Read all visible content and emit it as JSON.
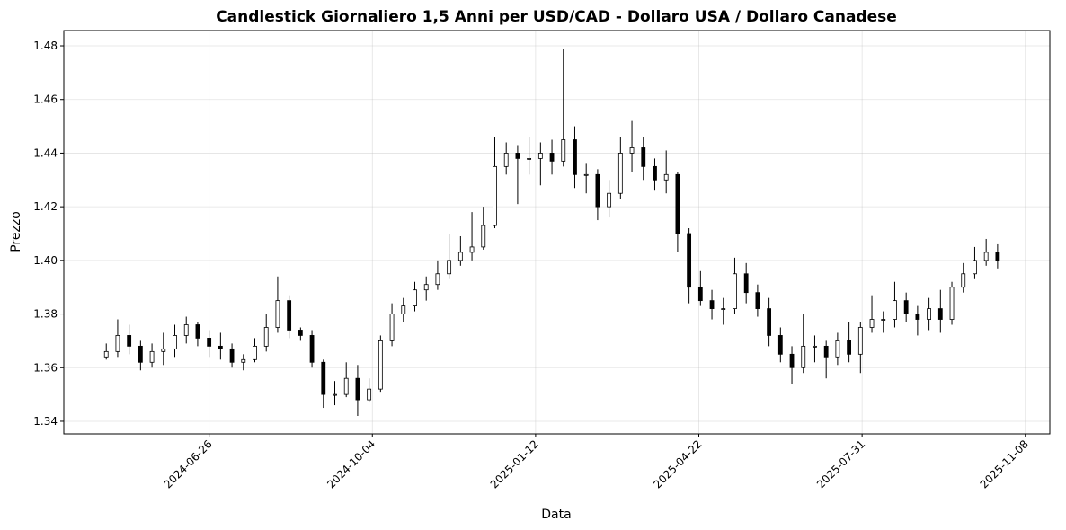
{
  "chart_data": {
    "type": "candlestick",
    "title": "Candlestick Giornaliero 1,5 Anni per USD/CAD - Dollaro USA / Dollaro Canadese",
    "x_label": "Data",
    "y_label": "Prezzo",
    "color": "#000000",
    "grid": true,
    "xlim": [
      "2024-03-29",
      "2025-11-23"
    ],
    "xticks": [
      "2024-06-26",
      "2024-10-04",
      "2025-01-12",
      "2025-04-22",
      "2025-07-31",
      "2025-11-08"
    ],
    "ylim": [
      1.3353,
      1.4857
    ],
    "yticks": [
      {
        "value": 1.34,
        "label": "1.34"
      },
      {
        "value": 1.36,
        "label": "1.36"
      },
      {
        "value": 1.38,
        "label": "1.38"
      },
      {
        "value": 1.4,
        "label": "1.40"
      },
      {
        "value": 1.42,
        "label": "1.42"
      },
      {
        "value": 1.44,
        "label": "1.44"
      },
      {
        "value": 1.46,
        "label": "1.46"
      },
      {
        "value": 1.48,
        "label": "1.48"
      }
    ],
    "x": [
      "2024-04-24",
      "2024-05-01",
      "2024-05-08",
      "2024-05-15",
      "2024-05-22",
      "2024-05-29",
      "2024-06-05",
      "2024-06-12",
      "2024-06-19",
      "2024-06-26",
      "2024-07-03",
      "2024-07-10",
      "2024-07-17",
      "2024-07-24",
      "2024-07-31",
      "2024-08-07",
      "2024-08-14",
      "2024-08-21",
      "2024-08-28",
      "2024-09-04",
      "2024-09-11",
      "2024-09-18",
      "2024-09-25",
      "2024-10-02",
      "2024-10-09",
      "2024-10-16",
      "2024-10-23",
      "2024-10-30",
      "2024-11-06",
      "2024-11-13",
      "2024-11-20",
      "2024-11-27",
      "2024-12-04",
      "2024-12-11",
      "2024-12-18",
      "2024-12-25",
      "2025-01-01",
      "2025-01-08",
      "2025-01-15",
      "2025-01-22",
      "2025-01-29",
      "2025-02-05",
      "2025-02-12",
      "2025-02-19",
      "2025-02-26",
      "2025-03-05",
      "2025-03-12",
      "2025-03-19",
      "2025-03-26",
      "2025-04-02",
      "2025-04-09",
      "2025-04-16",
      "2025-04-23",
      "2025-04-30",
      "2025-05-07",
      "2025-05-14",
      "2025-05-21",
      "2025-05-28",
      "2025-06-04",
      "2025-06-11",
      "2025-06-18",
      "2025-06-25",
      "2025-07-02",
      "2025-07-09",
      "2025-07-16",
      "2025-07-23",
      "2025-07-30",
      "2025-08-06",
      "2025-08-13",
      "2025-08-20",
      "2025-08-27",
      "2025-09-03",
      "2025-09-10",
      "2025-09-17",
      "2025-09-24",
      "2025-10-01",
      "2025-10-08",
      "2025-10-15",
      "2025-10-22"
    ],
    "open": [
      1.364,
      1.366,
      1.372,
      1.368,
      1.362,
      1.366,
      1.367,
      1.372,
      1.376,
      1.371,
      1.368,
      1.367,
      1.362,
      1.363,
      1.368,
      1.375,
      1.385,
      1.374,
      1.372,
      1.362,
      1.35,
      1.35,
      1.356,
      1.348,
      1.352,
      1.37,
      1.38,
      1.383,
      1.389,
      1.391,
      1.395,
      1.4,
      1.403,
      1.405,
      1.413,
      1.435,
      1.44,
      1.438,
      1.438,
      1.44,
      1.437,
      1.445,
      1.432,
      1.432,
      1.42,
      1.425,
      1.44,
      1.442,
      1.435,
      1.43,
      1.432,
      1.41,
      1.39,
      1.385,
      1.382,
      1.382,
      1.395,
      1.388,
      1.382,
      1.372,
      1.365,
      1.36,
      1.368,
      1.368,
      1.364,
      1.37,
      1.365,
      1.375,
      1.378,
      1.378,
      1.385,
      1.38,
      1.378,
      1.382,
      1.378,
      1.39,
      1.395,
      1.4,
      1.403
    ],
    "high": [
      1.369,
      1.378,
      1.376,
      1.37,
      1.369,
      1.373,
      1.376,
      1.379,
      1.377,
      1.374,
      1.373,
      1.369,
      1.365,
      1.371,
      1.38,
      1.394,
      1.387,
      1.375,
      1.374,
      1.363,
      1.355,
      1.362,
      1.361,
      1.356,
      1.372,
      1.384,
      1.386,
      1.392,
      1.394,
      1.4,
      1.41,
      1.409,
      1.418,
      1.42,
      1.446,
      1.444,
      1.443,
      1.446,
      1.444,
      1.445,
      1.479,
      1.45,
      1.436,
      1.434,
      1.43,
      1.446,
      1.452,
      1.446,
      1.438,
      1.441,
      1.433,
      1.412,
      1.396,
      1.389,
      1.386,
      1.401,
      1.399,
      1.391,
      1.386,
      1.375,
      1.368,
      1.38,
      1.372,
      1.37,
      1.373,
      1.377,
      1.377,
      1.387,
      1.381,
      1.392,
      1.388,
      1.383,
      1.386,
      1.389,
      1.392,
      1.399,
      1.405,
      1.408,
      1.406
    ],
    "low": [
      1.363,
      1.364,
      1.365,
      1.359,
      1.36,
      1.361,
      1.364,
      1.369,
      1.368,
      1.364,
      1.363,
      1.36,
      1.359,
      1.362,
      1.366,
      1.373,
      1.371,
      1.37,
      1.36,
      1.345,
      1.346,
      1.349,
      1.342,
      1.347,
      1.351,
      1.368,
      1.377,
      1.381,
      1.385,
      1.389,
      1.393,
      1.398,
      1.4,
      1.404,
      1.412,
      1.432,
      1.421,
      1.432,
      1.428,
      1.432,
      1.435,
      1.427,
      1.425,
      1.415,
      1.416,
      1.423,
      1.433,
      1.43,
      1.426,
      1.425,
      1.403,
      1.384,
      1.383,
      1.378,
      1.376,
      1.38,
      1.384,
      1.379,
      1.368,
      1.362,
      1.354,
      1.358,
      1.362,
      1.356,
      1.361,
      1.362,
      1.358,
      1.373,
      1.373,
      1.375,
      1.377,
      1.372,
      1.374,
      1.373,
      1.376,
      1.388,
      1.393,
      1.398,
      1.397
    ],
    "close": [
      1.366,
      1.372,
      1.368,
      1.362,
      1.366,
      1.367,
      1.372,
      1.376,
      1.371,
      1.368,
      1.367,
      1.362,
      1.363,
      1.368,
      1.375,
      1.385,
      1.374,
      1.372,
      1.362,
      1.35,
      1.35,
      1.356,
      1.348,
      1.352,
      1.37,
      1.38,
      1.383,
      1.389,
      1.391,
      1.395,
      1.4,
      1.403,
      1.405,
      1.413,
      1.435,
      1.44,
      1.438,
      1.438,
      1.44,
      1.437,
      1.445,
      1.432,
      1.432,
      1.42,
      1.425,
      1.44,
      1.442,
      1.435,
      1.43,
      1.432,
      1.41,
      1.39,
      1.385,
      1.382,
      1.382,
      1.395,
      1.388,
      1.382,
      1.372,
      1.365,
      1.36,
      1.368,
      1.368,
      1.364,
      1.37,
      1.365,
      1.375,
      1.378,
      1.378,
      1.385,
      1.38,
      1.378,
      1.382,
      1.378,
      1.39,
      1.395,
      1.4,
      1.403,
      1.4
    ]
  }
}
